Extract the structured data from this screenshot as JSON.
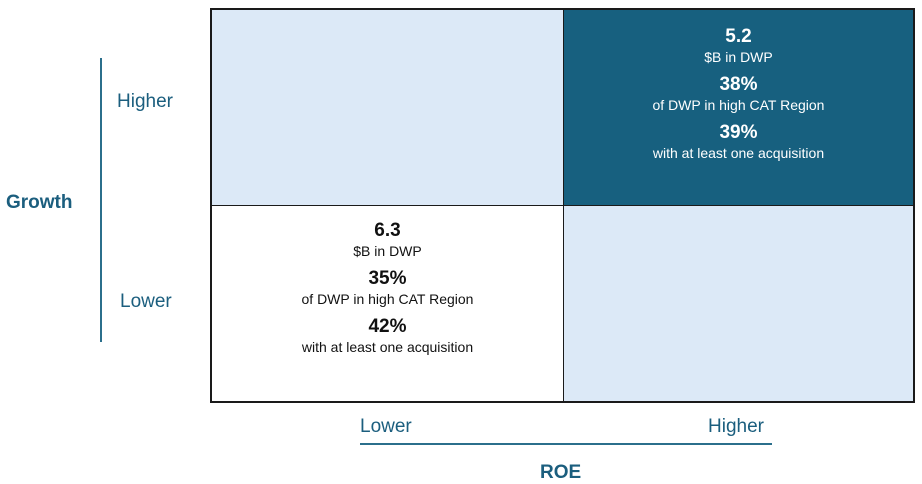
{
  "y_axis": {
    "title": "Growth",
    "higher_label": "Higher",
    "lower_label": "Lower"
  },
  "x_axis": {
    "title": "ROE",
    "lower_label": "Lower",
    "higher_label": "Higher"
  },
  "quadrants": {
    "top_right": {
      "fill": "#17607f",
      "stats": [
        {
          "value": "5.2",
          "label": "$B in DWP"
        },
        {
          "value": "38%",
          "label": "of DWP in high CAT Region"
        },
        {
          "value": "39%",
          "label": "with at least one acquisition"
        }
      ]
    },
    "bottom_left": {
      "fill": "#ffffff",
      "stats": [
        {
          "value": "6.3",
          "label": "$B in DWP"
        },
        {
          "value": "35%",
          "label": "of DWP in high CAT Region"
        },
        {
          "value": "42%",
          "label": "with at least one acquisition"
        }
      ]
    },
    "top_left": {
      "fill": "#dce9f7"
    },
    "bottom_right": {
      "fill": "#dce9f7"
    }
  }
}
